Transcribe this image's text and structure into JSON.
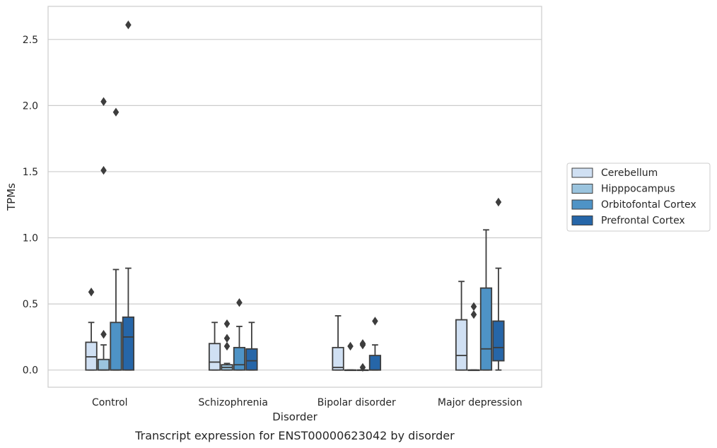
{
  "chart_data": {
    "type": "box",
    "xlabel": "Disorder",
    "ylabel": "TPMs",
    "caption": "Transcript expression for ENST00000623042 by disorder",
    "ylim": [
      -0.13,
      2.75
    ],
    "yticks": [
      0.0,
      0.5,
      1.0,
      1.5,
      2.0,
      2.5
    ],
    "ytick_labels": [
      "0.0",
      "0.5",
      "1.0",
      "1.5",
      "2.0",
      "2.5"
    ],
    "grid": "horizontal",
    "legend_position": "right",
    "categories": [
      "Control",
      "Schizophrenia",
      "Bipolar disorder",
      "Major depression"
    ],
    "series": [
      {
        "name": "Cerebellum",
        "color": "#d0e0f3",
        "boxes": [
          {
            "whisker_low": 0.0,
            "q1": 0.0,
            "median": 0.1,
            "q3": 0.21,
            "whisker_high": 0.36,
            "outliers": [
              0.59
            ]
          },
          {
            "whisker_low": 0.0,
            "q1": 0.0,
            "median": 0.06,
            "q3": 0.2,
            "whisker_high": 0.36,
            "outliers": []
          },
          {
            "whisker_low": 0.0,
            "q1": 0.0,
            "median": 0.02,
            "q3": 0.17,
            "whisker_high": 0.41,
            "outliers": []
          },
          {
            "whisker_low": 0.0,
            "q1": 0.0,
            "median": 0.11,
            "q3": 0.38,
            "whisker_high": 0.67,
            "outliers": []
          }
        ]
      },
      {
        "name": "Hipppocampus",
        "color": "#9bc4de",
        "boxes": [
          {
            "whisker_low": 0.0,
            "q1": 0.0,
            "median": 0.0,
            "q3": 0.08,
            "whisker_high": 0.19,
            "outliers": [
              0.27,
              1.51,
              2.03
            ]
          },
          {
            "whisker_low": 0.0,
            "q1": 0.0,
            "median": 0.02,
            "q3": 0.04,
            "whisker_high": 0.05,
            "outliers": [
              0.18,
              0.24,
              0.35
            ]
          },
          {
            "whisker_low": 0.0,
            "q1": 0.0,
            "median": 0.0,
            "q3": 0.0,
            "whisker_high": 0.0,
            "outliers": [
              0.18
            ]
          },
          {
            "whisker_low": 0.0,
            "q1": 0.0,
            "median": 0.0,
            "q3": 0.0,
            "whisker_high": 0.0,
            "outliers": [
              0.42,
              0.48
            ]
          }
        ]
      },
      {
        "name": "Orbitofontal Cortex",
        "color": "#4e93c6",
        "boxes": [
          {
            "whisker_low": 0.0,
            "q1": 0.0,
            "median": 0.0,
            "q3": 0.36,
            "whisker_high": 0.76,
            "outliers": [
              1.95
            ]
          },
          {
            "whisker_low": 0.0,
            "q1": 0.0,
            "median": 0.04,
            "q3": 0.17,
            "whisker_high": 0.33,
            "outliers": [
              0.51
            ]
          },
          {
            "whisker_low": 0.0,
            "q1": 0.0,
            "median": 0.0,
            "q3": 0.0,
            "whisker_high": 0.0,
            "outliers": [
              0.02,
              0.19,
              0.2
            ]
          },
          {
            "whisker_low": 0.0,
            "q1": 0.0,
            "median": 0.16,
            "q3": 0.62,
            "whisker_high": 1.06,
            "outliers": []
          }
        ]
      },
      {
        "name": "Prefrontal Cortex",
        "color": "#2666a8",
        "boxes": [
          {
            "whisker_low": 0.0,
            "q1": 0.0,
            "median": 0.25,
            "q3": 0.4,
            "whisker_high": 0.77,
            "outliers": [
              2.61
            ]
          },
          {
            "whisker_low": 0.0,
            "q1": 0.0,
            "median": 0.07,
            "q3": 0.16,
            "whisker_high": 0.36,
            "outliers": []
          },
          {
            "whisker_low": 0.0,
            "q1": 0.0,
            "median": 0.0,
            "q3": 0.11,
            "whisker_high": 0.19,
            "outliers": [
              0.37
            ]
          },
          {
            "whisker_low": 0.0,
            "q1": 0.07,
            "median": 0.17,
            "q3": 0.37,
            "whisker_high": 0.77,
            "outliers": [
              1.27
            ]
          }
        ]
      }
    ]
  }
}
